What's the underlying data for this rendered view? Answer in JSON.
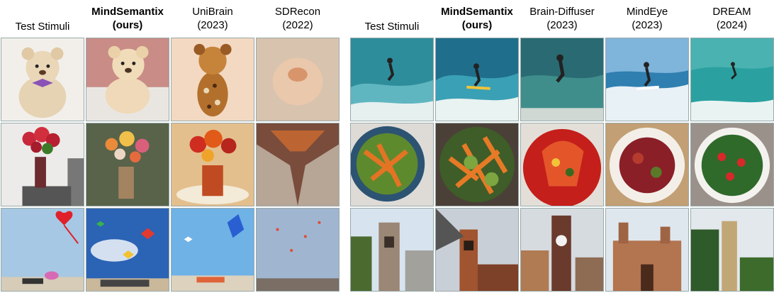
{
  "left_panel": {
    "columns": [
      {
        "line1": "Test Stimuli",
        "line2": "",
        "bold": false
      },
      {
        "line1": "MindSemantix",
        "line2": "(ours)",
        "bold": true
      },
      {
        "line1": "UniBrain",
        "line2": "(2023)",
        "bold": false
      },
      {
        "line1": "SDRecon",
        "line2": "(2022)",
        "bold": false
      }
    ],
    "rows": [
      "teddy-bear",
      "flowers-vase",
      "kites-beach"
    ]
  },
  "right_panel": {
    "columns": [
      {
        "line1": "Test Stimuli",
        "line2": "",
        "bold": false
      },
      {
        "line1": "MindSemantix",
        "line2": "(ours)",
        "bold": true
      },
      {
        "line1": "Brain-Diffuser",
        "line2": "(2023)",
        "bold": false
      },
      {
        "line1": "MindEye",
        "line2": "(2023)",
        "bold": false
      },
      {
        "line1": "DREAM",
        "line2": "(2024)",
        "bold": false
      }
    ],
    "rows": [
      "surfer-wave",
      "salad-bowl",
      "clock-tower"
    ]
  },
  "colors": {
    "teddy": "#e3cfae",
    "flowers": "#c9303a",
    "sky": "#6aa9dc",
    "sea": "#2f9aa8",
    "salad_green": "#4c8a2e",
    "carrot": "#e2752a",
    "brick": "#9c6a4a"
  }
}
